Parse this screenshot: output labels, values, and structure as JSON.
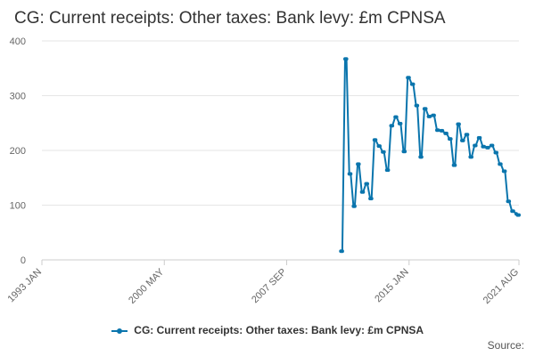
{
  "title": "CG: Current receipts: Other taxes: Bank levy: £m CPNSA",
  "source_label": "Source:",
  "legend_label": "CG: Current receipts: Other taxes: Bank levy: £m CPNSA",
  "series_color": "#0a75ad",
  "chart_data": {
    "type": "line",
    "title": "CG: Current receipts: Other taxes: Bank levy: £m CPNSA",
    "xlabel": "",
    "ylabel": "",
    "ylim": [
      0,
      400
    ],
    "yticks": [
      0,
      100,
      200,
      300,
      400
    ],
    "x_tick_labels": [
      "1993 JAN",
      "2000 MAY",
      "2007 SEP",
      "2015 JAN",
      "2021 AUG"
    ],
    "x_tick_dates": [
      "1993-01",
      "2000-05",
      "2007-09",
      "2015-01",
      "2021-08"
    ],
    "x_range": [
      "1993-01",
      "2021-08"
    ],
    "grid": true,
    "legend_position": "bottom",
    "series": [
      {
        "name": "CG: Current receipts: Other taxes: Bank levy: £m CPNSA",
        "x": [
          "2010-12",
          "2011-01",
          "2011-03",
          "2011-04",
          "2011-06",
          "2011-07",
          "2011-09",
          "2011-10",
          "2011-12",
          "2012-01",
          "2012-03",
          "2012-04",
          "2012-06",
          "2012-07",
          "2012-09",
          "2012-10",
          "2012-12",
          "2013-01",
          "2013-03",
          "2013-04",
          "2013-06",
          "2013-07",
          "2013-09",
          "2013-10",
          "2013-12",
          "2014-01",
          "2014-03",
          "2014-04",
          "2014-06",
          "2014-07",
          "2014-09",
          "2014-10",
          "2014-12",
          "2015-01",
          "2015-03",
          "2015-04",
          "2015-06",
          "2015-07",
          "2015-09",
          "2015-10",
          "2015-12",
          "2016-01",
          "2016-03",
          "2016-04",
          "2016-06",
          "2016-07",
          "2016-09",
          "2016-10",
          "2016-12",
          "2017-01",
          "2017-03",
          "2017-04",
          "2017-06",
          "2017-07",
          "2017-09",
          "2017-10",
          "2017-12",
          "2018-01",
          "2018-03",
          "2018-04",
          "2018-06",
          "2018-07",
          "2018-09",
          "2018-10",
          "2018-12",
          "2019-01",
          "2019-03",
          "2019-04",
          "2019-06",
          "2019-07",
          "2019-09",
          "2019-10",
          "2019-12",
          "2020-01",
          "2020-03",
          "2020-04",
          "2020-06",
          "2020-07",
          "2020-09",
          "2020-10",
          "2020-12",
          "2021-01",
          "2021-03",
          "2021-04",
          "2021-06",
          "2021-07",
          "2021-08"
        ],
        "values": [
          16,
          16,
          367,
          367,
          157,
          157,
          98,
          98,
          175,
          175,
          124,
          124,
          139,
          139,
          112,
          112,
          219,
          219,
          208,
          208,
          197,
          197,
          164,
          164,
          245,
          245,
          261,
          261,
          249,
          249,
          198,
          198,
          333,
          333,
          321,
          321,
          282,
          282,
          188,
          188,
          276,
          276,
          262,
          262,
          264,
          264,
          237,
          237,
          236,
          236,
          231,
          231,
          221,
          221,
          173,
          173,
          248,
          248,
          218,
          218,
          229,
          229,
          188,
          188,
          209,
          209,
          223,
          223,
          207,
          207,
          205,
          205,
          209,
          209,
          196,
          196,
          175,
          175,
          162,
          162,
          107,
          107,
          89,
          89,
          84,
          82,
          82
        ]
      }
    ]
  }
}
